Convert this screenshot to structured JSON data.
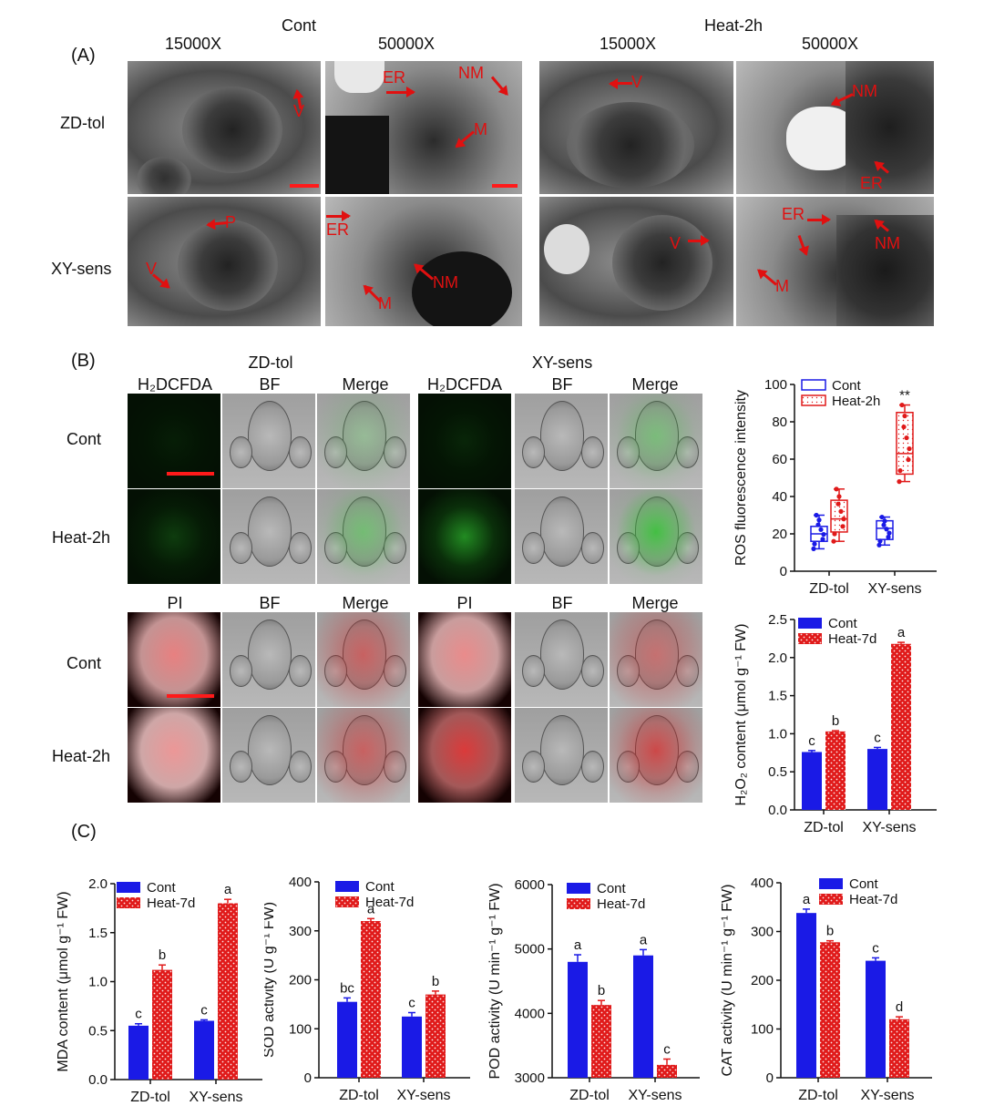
{
  "panelA": {
    "label": "(A)",
    "groups": [
      "Cont",
      "Heat-2h"
    ],
    "magnifications": [
      "15000X",
      "50000X",
      "15000X",
      "50000X"
    ],
    "rows": [
      "ZD-tol",
      "XY-sens"
    ],
    "organelles": {
      "V": "V",
      "ER": "ER",
      "NM": "NM",
      "M": "M",
      "P": "P"
    }
  },
  "panelB": {
    "label": "(B)",
    "zd_title": "ZD-tol",
    "xy_title": "XY-sens",
    "stain1": "H₂DCFDA",
    "stain2": "PI",
    "bf": "BF",
    "merge": "Merge",
    "rows": [
      "Cont",
      "Heat-2h"
    ]
  },
  "panelC": {
    "label": "(C)"
  },
  "colors": {
    "cont": "#1a1ae6",
    "heat": "#e01a1a",
    "fluor_green": "#2fbf2f",
    "fluor_red": "#d41818"
  },
  "chart_data": [
    {
      "type": "box",
      "ylabel": "ROS fluorescence intensity",
      "categories": [
        "ZD-tol",
        "XY-sens"
      ],
      "ylim": [
        0,
        100
      ],
      "yticks": [
        0,
        20,
        40,
        60,
        80,
        100
      ],
      "legend": [
        "Cont",
        "Heat-2h"
      ],
      "legend_position": "top-left",
      "annotation": "**",
      "series": [
        {
          "name": "Cont",
          "boxes": [
            {
              "min": 12,
              "q1": 16,
              "median": 20,
              "q3": 24,
              "max": 30
            },
            {
              "min": 14,
              "q1": 17,
              "median": 23,
              "q3": 27,
              "max": 29
            }
          ]
        },
        {
          "name": "Heat-2h",
          "boxes": [
            {
              "min": 16,
              "q1": 21,
              "median": 28,
              "q3": 38,
              "max": 44
            },
            {
              "min": 48,
              "q1": 52,
              "median": 63,
              "q3": 85,
              "max": 89
            }
          ]
        }
      ]
    },
    {
      "type": "bar",
      "ylabel": "H₂O₂ content (μmol g⁻¹ FW)",
      "categories": [
        "ZD-tol",
        "XY-sens"
      ],
      "ylim": [
        0,
        2.5
      ],
      "yticks": [
        "0.0",
        "0.5",
        "1.0",
        "1.5",
        "2.0",
        "2.5"
      ],
      "legend": [
        "Cont",
        "Heat-7d"
      ],
      "series": [
        {
          "name": "Cont",
          "values": [
            0.76,
            0.8
          ],
          "errors": [
            0.02,
            0.02
          ],
          "letters": [
            "c",
            "c"
          ]
        },
        {
          "name": "Heat-7d",
          "values": [
            1.03,
            2.18
          ],
          "errors": [
            0.01,
            0.02
          ],
          "letters": [
            "b",
            "a"
          ]
        }
      ]
    },
    {
      "type": "bar",
      "ylabel": "MDA content (μmol g⁻¹ FW)",
      "categories": [
        "ZD-tol",
        "XY-sens"
      ],
      "ylim": [
        0,
        2.0
      ],
      "yticks": [
        "0.0",
        "0.5",
        "1.0",
        "1.5",
        "2.0"
      ],
      "legend": [
        "Cont",
        "Heat-7d"
      ],
      "series": [
        {
          "name": "Cont",
          "values": [
            0.55,
            0.6
          ],
          "errors": [
            0.02,
            0.01
          ],
          "letters": [
            "c",
            "c"
          ]
        },
        {
          "name": "Heat-7d",
          "values": [
            1.12,
            1.8
          ],
          "errors": [
            0.05,
            0.04
          ],
          "letters": [
            "b",
            "a"
          ]
        }
      ]
    },
    {
      "type": "bar",
      "ylabel": "SOD activity (U g⁻¹ FW)",
      "categories": [
        "ZD-tol",
        "XY-sens"
      ],
      "ylim": [
        0,
        400
      ],
      "yticks": [
        "0",
        "100",
        "200",
        "300",
        "400"
      ],
      "legend": [
        "Cont",
        "Heat-7d"
      ],
      "series": [
        {
          "name": "Cont",
          "values": [
            155,
            125
          ],
          "errors": [
            8,
            8
          ],
          "letters": [
            "bc",
            "c"
          ]
        },
        {
          "name": "Heat-7d",
          "values": [
            320,
            170
          ],
          "errors": [
            5,
            7
          ],
          "letters": [
            "a",
            "b"
          ]
        }
      ]
    },
    {
      "type": "bar",
      "ylabel": "POD activity (U min⁻¹ g⁻¹ FW)",
      "categories": [
        "ZD-tol",
        "XY-sens"
      ],
      "ylim": [
        3000,
        6000
      ],
      "yticks": [
        "3000",
        "4000",
        "5000",
        "6000"
      ],
      "legend": [
        "Cont",
        "Heat-7d"
      ],
      "series": [
        {
          "name": "Cont",
          "values": [
            4800,
            4900
          ],
          "errors": [
            110,
            90
          ],
          "letters": [
            "a",
            "a"
          ]
        },
        {
          "name": "Heat-7d",
          "values": [
            4130,
            3200
          ],
          "errors": [
            70,
            90
          ],
          "letters": [
            "b",
            "c"
          ]
        }
      ]
    },
    {
      "type": "bar",
      "ylabel": "CAT activity (U min⁻¹ g⁻¹ FW)",
      "categories": [
        "ZD-tol",
        "XY-sens"
      ],
      "ylim": [
        0,
        400
      ],
      "yticks": [
        "0",
        "100",
        "200",
        "300",
        "400"
      ],
      "legend": [
        "Cont",
        "Heat-7d"
      ],
      "series": [
        {
          "name": "Cont",
          "values": [
            338,
            240
          ],
          "errors": [
            8,
            6
          ],
          "letters": [
            "a",
            "c"
          ]
        },
        {
          "name": "Heat-7d",
          "values": [
            278,
            120
          ],
          "errors": [
            3,
            5
          ],
          "letters": [
            "b",
            "d"
          ]
        }
      ]
    }
  ]
}
